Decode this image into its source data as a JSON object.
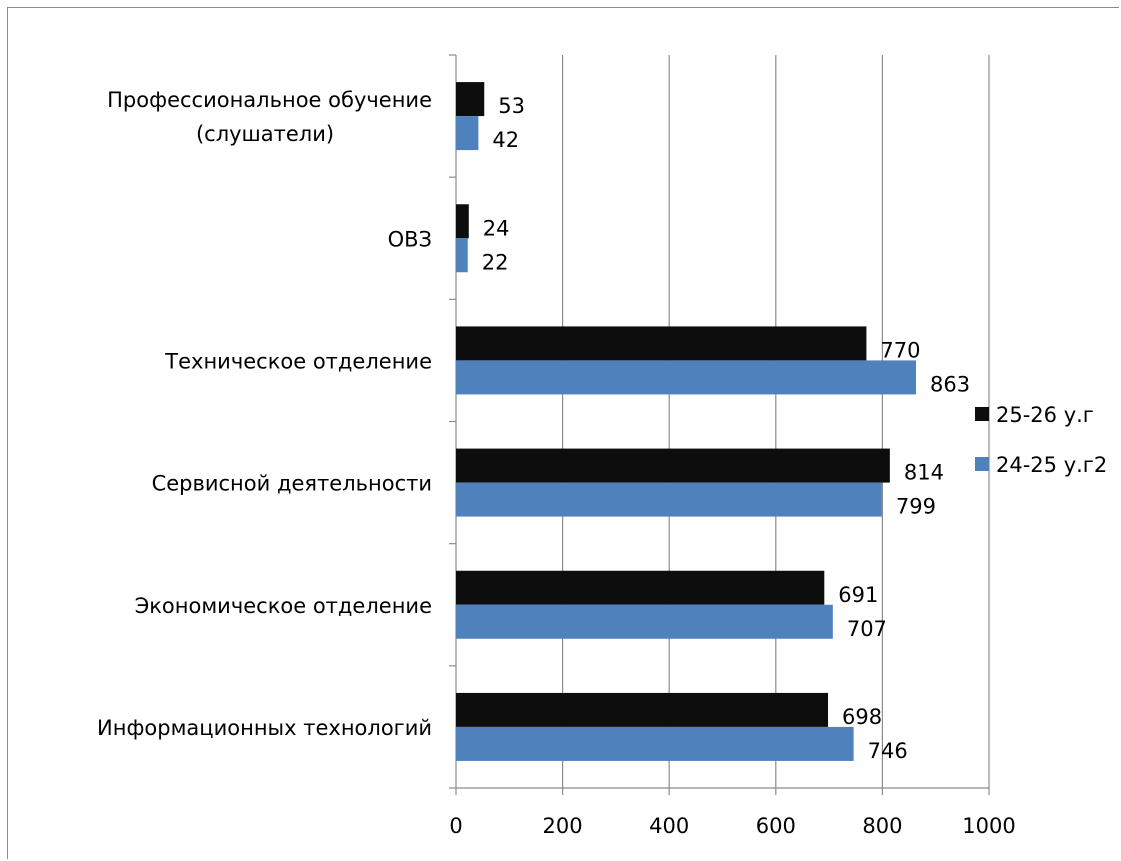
{
  "chart_data": {
    "type": "bar",
    "orientation": "horizontal",
    "categories": [
      "Профессиональное обучение (слушатели)",
      "ОВЗ",
      "Техническое отделение",
      "Сервисной деятельности",
      "Экономическое отделение",
      "Информационных  технологий"
    ],
    "category_lines": [
      [
        "Профессиональное обучение",
        "(слушатели)"
      ],
      [
        "ОВЗ"
      ],
      [
        "Техническое отделение"
      ],
      [
        "Сервисной деятельности"
      ],
      [
        "Экономическое отделение"
      ],
      [
        "Информационных  технологий"
      ]
    ],
    "series": [
      {
        "name": "25-26 у.г",
        "color": "#0d0d0d",
        "values": [
          53,
          24,
          770,
          814,
          691,
          698
        ]
      },
      {
        "name": "24-25 у.г2",
        "color": "#4f81bd",
        "values": [
          42,
          22,
          863,
          799,
          707,
          746
        ]
      }
    ],
    "xlim": [
      0,
      1000
    ],
    "xticks": [
      0,
      200,
      400,
      600,
      800,
      1000
    ],
    "grid": "vertical",
    "legend": "right",
    "data_labels": true
  }
}
